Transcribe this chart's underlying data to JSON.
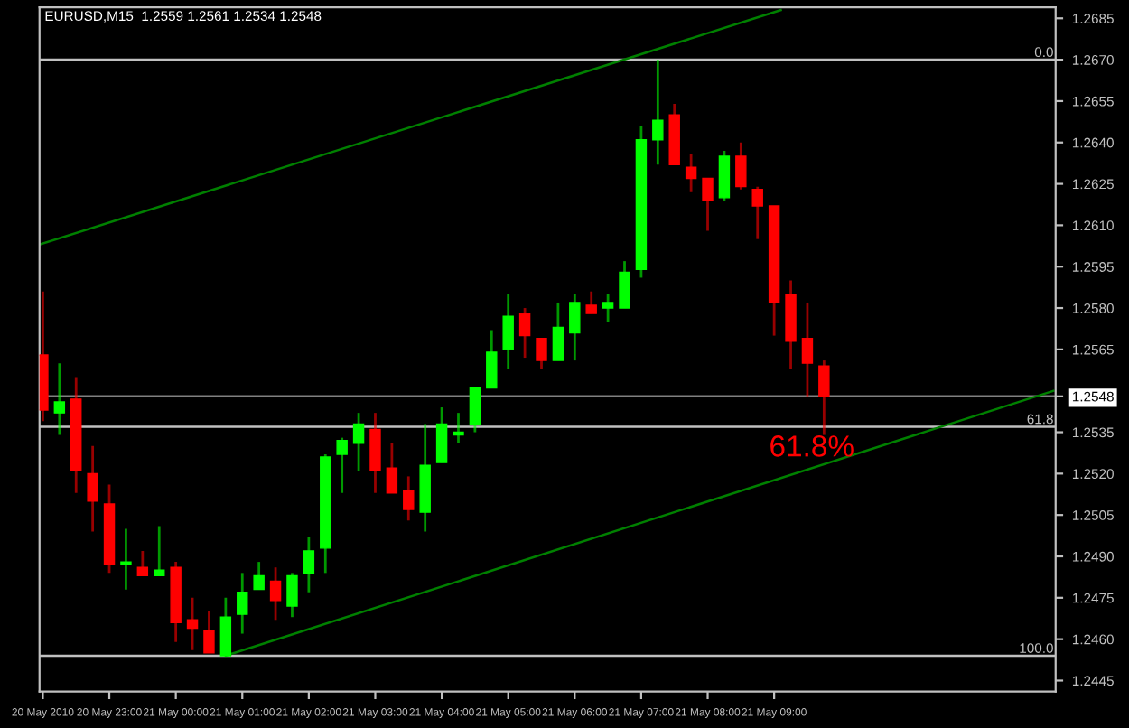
{
  "chart_data": {
    "type": "candlestick",
    "title": "EURUSD,M15  1.2559 1.2561 1.2534 1.2548",
    "x": [
      "2010-05-20T22:00",
      "2010-05-20T22:15",
      "2010-05-20T22:30",
      "2010-05-20T22:45",
      "2010-05-20T23:00",
      "2010-05-20T23:15",
      "2010-05-20T23:30",
      "2010-05-20T23:45",
      "2010-05-21T00:00",
      "2010-05-21T00:15",
      "2010-05-21T00:30",
      "2010-05-21T00:45",
      "2010-05-21T01:00",
      "2010-05-21T01:15",
      "2010-05-21T01:30",
      "2010-05-21T01:45",
      "2010-05-21T02:00",
      "2010-05-21T02:15",
      "2010-05-21T02:30",
      "2010-05-21T02:45",
      "2010-05-21T03:00",
      "2010-05-21T03:15",
      "2010-05-21T03:30",
      "2010-05-21T03:45",
      "2010-05-21T04:00",
      "2010-05-21T04:15",
      "2010-05-21T04:30",
      "2010-05-21T04:45",
      "2010-05-21T05:00",
      "2010-05-21T05:15",
      "2010-05-21T05:30",
      "2010-05-21T05:45",
      "2010-05-21T06:00",
      "2010-05-21T06:15",
      "2010-05-21T06:30",
      "2010-05-21T06:45",
      "2010-05-21T07:00",
      "2010-05-21T07:15",
      "2010-05-21T07:30",
      "2010-05-21T07:45",
      "2010-05-21T08:00",
      "2010-05-21T08:15",
      "2010-05-21T08:30",
      "2010-05-21T08:45",
      "2010-05-21T09:00",
      "2010-05-21T09:15",
      "2010-05-21T09:30",
      "2010-05-21T09:45"
    ],
    "ohlc": [
      [
        1.2563,
        1.2586,
        1.2539,
        1.2543
      ],
      [
        1.2542,
        1.256,
        1.2534,
        1.2546
      ],
      [
        1.2547,
        1.2555,
        1.2513,
        1.2521
      ],
      [
        1.252,
        1.253,
        1.2499,
        1.251
      ],
      [
        1.2509,
        1.2516,
        1.2484,
        1.2487
      ],
      [
        1.2487,
        1.25,
        1.2478,
        1.2488
      ],
      [
        1.2486,
        1.2492,
        1.2483,
        1.2483
      ],
      [
        1.2483,
        1.2501,
        1.2483,
        1.2485
      ],
      [
        1.2486,
        1.2488,
        1.2459,
        1.2466
      ],
      [
        1.2467,
        1.2475,
        1.2456,
        1.2464
      ],
      [
        1.2463,
        1.247,
        1.2455,
        1.2455
      ],
      [
        1.2454,
        1.2475,
        1.2454,
        1.2468
      ],
      [
        1.2469,
        1.2484,
        1.2462,
        1.2477
      ],
      [
        1.2478,
        1.2488,
        1.2478,
        1.2483
      ],
      [
        1.2481,
        1.2486,
        1.2467,
        1.2474
      ],
      [
        1.2472,
        1.2484,
        1.2468,
        1.2483
      ],
      [
        1.2484,
        1.2497,
        1.2477,
        1.2492
      ],
      [
        1.2493,
        1.2527,
        1.2484,
        1.2526
      ],
      [
        1.2527,
        1.2533,
        1.2513,
        1.2532
      ],
      [
        1.2531,
        1.2542,
        1.2521,
        1.2538
      ],
      [
        1.2536,
        1.2542,
        1.2513,
        1.2521
      ],
      [
        1.2522,
        1.2531,
        1.2513,
        1.2513
      ],
      [
        1.2514,
        1.2519,
        1.2503,
        1.2507
      ],
      [
        1.2506,
        1.2538,
        1.2499,
        1.2523
      ],
      [
        1.2524,
        1.2544,
        1.2524,
        1.2538
      ],
      [
        1.2534,
        1.2542,
        1.2531,
        1.2535
      ],
      [
        1.2538,
        1.2551,
        1.2535,
        1.2551
      ],
      [
        1.2551,
        1.2572,
        1.2551,
        1.2564
      ],
      [
        1.2565,
        1.2585,
        1.2558,
        1.2577
      ],
      [
        1.2578,
        1.258,
        1.2562,
        1.257
      ],
      [
        1.2569,
        1.2569,
        1.2558,
        1.2561
      ],
      [
        1.2561,
        1.2582,
        1.2561,
        1.2573
      ],
      [
        1.2571,
        1.2585,
        1.2561,
        1.2582
      ],
      [
        1.2581,
        1.2586,
        1.2578,
        1.2578
      ],
      [
        1.258,
        1.2585,
        1.2575,
        1.2582
      ],
      [
        1.258,
        1.2597,
        1.258,
        1.2593
      ],
      [
        1.2594,
        1.2646,
        1.2591,
        1.2641
      ],
      [
        1.2641,
        1.267,
        1.2632,
        1.2648
      ],
      [
        1.265,
        1.2654,
        1.2632,
        1.2632
      ],
      [
        1.2631,
        1.2636,
        1.2622,
        1.2627
      ],
      [
        1.2627,
        1.2627,
        1.2608,
        1.2619
      ],
      [
        1.262,
        1.2637,
        1.2619,
        1.2635
      ],
      [
        1.2635,
        1.264,
        1.2623,
        1.2624
      ],
      [
        1.2623,
        1.2624,
        1.2605,
        1.2617
      ],
      [
        1.2617,
        1.2617,
        1.257,
        1.2582
      ],
      [
        1.2585,
        1.259,
        1.2558,
        1.2568
      ],
      [
        1.2569,
        1.2582,
        1.2548,
        1.256
      ],
      [
        1.2559,
        1.2561,
        1.2534,
        1.2548
      ]
    ],
    "colors": [
      "#ff0000",
      "#00ff00",
      "#ff0000",
      "#ff0000",
      "#ff0000",
      "#00ff00",
      "#ff0000",
      "#00ff00",
      "#ff0000",
      "#ff0000",
      "#ff0000",
      "#00ff00",
      "#00ff00",
      "#00ff00",
      "#ff0000",
      "#00ff00",
      "#00ff00",
      "#00ff00",
      "#00ff00",
      "#00ff00",
      "#ff0000",
      "#ff0000",
      "#ff0000",
      "#00ff00",
      "#00ff00",
      "#00ff00",
      "#00ff00",
      "#00ff00",
      "#00ff00",
      "#ff0000",
      "#ff0000",
      "#00ff00",
      "#00ff00",
      "#ff0000",
      "#00ff00",
      "#00ff00",
      "#00ff00",
      "#00ff00",
      "#ff0000",
      "#ff0000",
      "#ff0000",
      "#00ff00",
      "#ff0000",
      "#ff0000",
      "#ff0000",
      "#ff0000",
      "#ff0000",
      "#ff0000"
    ],
    "series": [
      {
        "type": "line",
        "x": [
          "2010-05-20T21:57",
          "2010-05-21T09:06"
        ],
        "values": [
          1.2603,
          1.2688
        ],
        "color": "#008000"
      },
      {
        "type": "line",
        "x": [
          "2010-05-21T00:45",
          "2010-05-21T13:12"
        ],
        "values": [
          1.2454,
          1.255
        ],
        "color": "#008000"
      }
    ],
    "ref_lines": [
      {
        "axis": "y",
        "value": 1.267,
        "color": "#c0c0c0"
      },
      {
        "axis": "y",
        "value": 1.2537,
        "color": "#c0c0c0"
      },
      {
        "axis": "y",
        "value": 1.2454,
        "color": "#c0c0c0"
      },
      {
        "axis": "y",
        "value": 1.2548,
        "color": "#808080"
      }
    ],
    "annotations": [
      "61.8%",
      {
        "text": "0.0",
        "x": "2010-05-21T13:14",
        "y": 1.267
      },
      {
        "text": "61.8",
        "x": "2010-05-21T13:14",
        "y": 1.2537
      },
      {
        "text": "100.0",
        "x": "2010-05-21T13:14",
        "y": 1.2454
      }
    ],
    "xlim": [
      "2010-05-20T21:57",
      "2010-05-21T13:14"
    ],
    "ylim": [
      1.2441,
      1.2689
    ],
    "xticks": [
      {
        "value": "2010-05-20T22:00",
        "label": "20 May 2010"
      },
      {
        "value": "2010-05-20T23:00",
        "label": "20 May 23:00"
      },
      {
        "value": "2010-05-21T00:00",
        "label": "21 May 00:00"
      },
      {
        "value": "2010-05-21T01:00",
        "label": "21 May 01:00"
      },
      {
        "value": "2010-05-21T02:00",
        "label": "21 May 02:00"
      },
      {
        "value": "2010-05-21T03:00",
        "label": "21 May 03:00"
      },
      {
        "value": "2010-05-21T04:00",
        "label": "21 May 04:00"
      },
      {
        "value": "2010-05-21T05:00",
        "label": "21 May 05:00"
      },
      {
        "value": "2010-05-21T06:00",
        "label": "21 May 06:00"
      },
      {
        "value": "2010-05-21T07:00",
        "label": "21 May 07:00"
      },
      {
        "value": "2010-05-21T08:00",
        "label": "21 May 08:00"
      },
      {
        "value": "2010-05-21T09:00",
        "label": "21 May 09:00"
      }
    ],
    "yticks": [
      {
        "value": 1.2445,
        "label": "1.2445"
      },
      {
        "value": 1.246,
        "label": "1.2460"
      },
      {
        "value": 1.2475,
        "label": "1.2475"
      },
      {
        "value": 1.249,
        "label": "1.2490"
      },
      {
        "value": 1.2505,
        "label": "1.2505"
      },
      {
        "value": 1.252,
        "label": "1.2520"
      },
      {
        "value": 1.2535,
        "label": "1.2535"
      },
      {
        "value": 1.2548,
        "label": "1.2548"
      },
      {
        "value": 1.2565,
        "label": "1.2565"
      },
      {
        "value": 1.258,
        "label": "1.2580"
      },
      {
        "value": 1.2595,
        "label": "1.2595"
      },
      {
        "value": 1.261,
        "label": "1.2610"
      },
      {
        "value": 1.2625,
        "label": "1.2625"
      },
      {
        "value": 1.264,
        "label": "1.2640"
      },
      {
        "value": 1.2655,
        "label": "1.2655"
      },
      {
        "value": 1.267,
        "label": "1.2670"
      },
      {
        "value": 1.2685,
        "label": "1.2685"
      }
    ],
    "grid": false
  }
}
